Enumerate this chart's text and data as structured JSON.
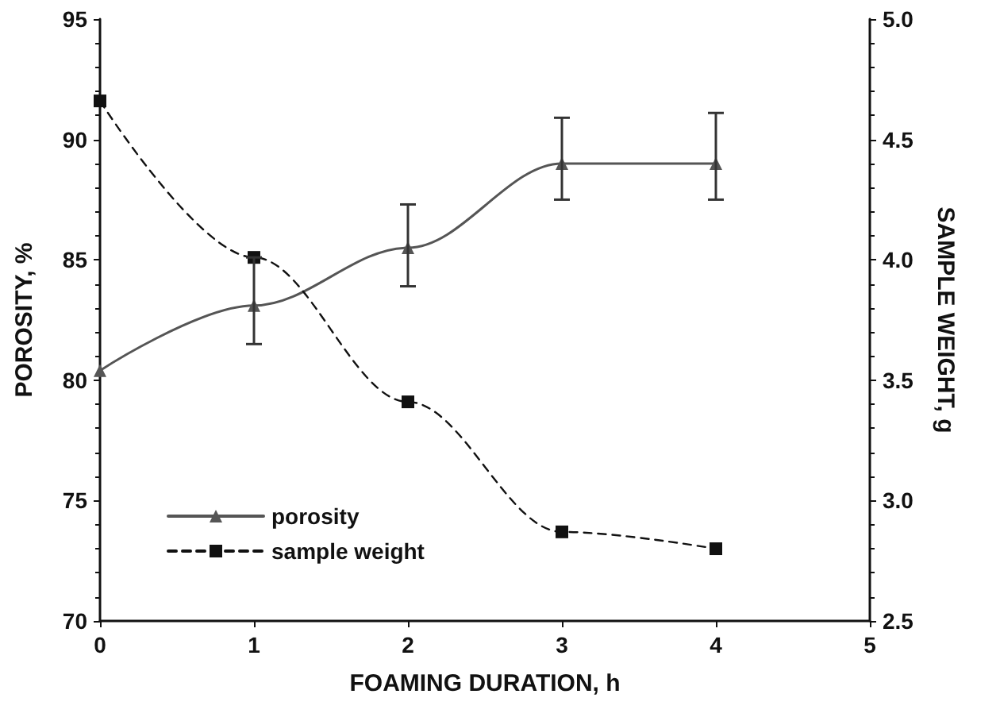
{
  "chart_data": {
    "type": "line",
    "xlabel": "FOAMING DURATION, h",
    "ylabel": "POROSITY, %",
    "y2label": "SAMPLE WEIGHT, g",
    "x": [
      0,
      1,
      2,
      3,
      4
    ],
    "series": [
      {
        "name": "porosity",
        "color": "#555555",
        "values": [
          80.4,
          83.1,
          85.5,
          89.0,
          89.0
        ],
        "errors": [
          null,
          [
            81.5,
            85.1
          ],
          [
            83.9,
            87.3
          ],
          [
            87.5,
            90.9
          ],
          [
            87.5,
            91.1
          ]
        ],
        "marker": "triangle",
        "line_style": "solid"
      },
      {
        "name": "sample weight",
        "color": "#111111",
        "values": [
          4.66,
          4.01,
          3.41,
          2.87,
          2.8
        ],
        "axis": "y2",
        "marker": "square",
        "line_style": "dashed"
      }
    ],
    "xlim": [
      0,
      5
    ],
    "xticks": [
      0,
      1,
      2,
      3,
      4,
      5
    ],
    "ylim": [
      70,
      95
    ],
    "yticks": [
      70,
      75,
      80,
      85,
      90,
      95
    ],
    "y2lim": [
      2.5,
      5.0
    ],
    "y2ticks": [
      2.5,
      {
        "value": 3,
        "label": "3.0"
      },
      3.5,
      {
        "value": 4,
        "label": "4.0"
      },
      4.5,
      {
        "value": 5,
        "label": "5.0"
      }
    ],
    "grid": false,
    "legend": "bottom left"
  }
}
